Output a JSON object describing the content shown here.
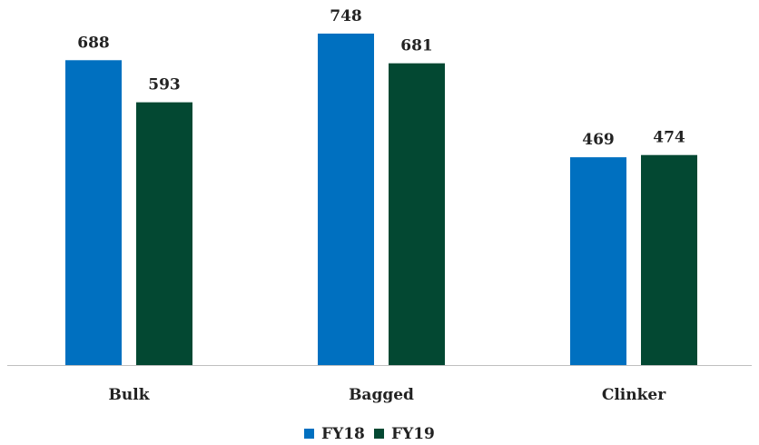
{
  "chart_data": {
    "type": "bar",
    "title": "",
    "xlabel": "",
    "ylabel": "",
    "categories": [
      "Bulk",
      "Bagged",
      "Clinker"
    ],
    "series": [
      {
        "name": "FY18",
        "values": [
          688,
          748,
          469
        ],
        "color": "#0070C0"
      },
      {
        "name": "FY19",
        "values": [
          593,
          681,
          474
        ],
        "color": "#034832"
      }
    ],
    "ylim": [
      0,
      748
    ],
    "grid": false,
    "legend_position": "bottom"
  }
}
